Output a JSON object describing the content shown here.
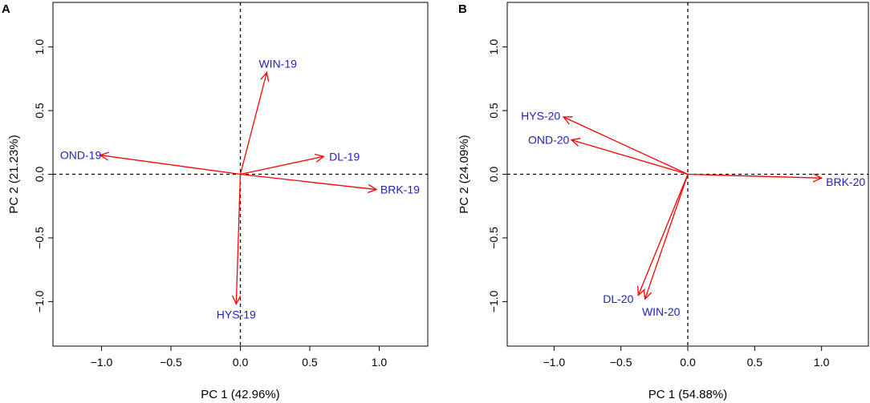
{
  "figure": {
    "arrow_color": "#ff0000",
    "label_color": "#2222bb"
  },
  "chart_data": [
    {
      "type": "scatter",
      "panel_label": "A",
      "title": "",
      "xlabel": "PC 1 (42.96%)",
      "ylabel": "PC 2 (21.23%)",
      "xlim": [
        -1.35,
        1.35
      ],
      "ylim": [
        -1.35,
        1.35
      ],
      "xticks": [
        -1.0,
        -0.5,
        0.0,
        0.5,
        1.0
      ],
      "xtick_labels": [
        "−1.0",
        "−0.5",
        "0.0",
        "0.5",
        "1.0"
      ],
      "yticks": [
        -1.0,
        -0.5,
        0.0,
        0.5,
        1.0
      ],
      "ytick_labels": [
        "−1.0",
        "−0.5",
        "0.0",
        "0.5",
        "1.0"
      ],
      "grid": false,
      "reference_lines": {
        "x": 0,
        "y": 0,
        "style": "dashed"
      },
      "vectors": [
        {
          "name": "WIN-19",
          "x": 0.19,
          "y": 0.8,
          "label_x": 0.27,
          "label_y": 0.87
        },
        {
          "name": "DL-19",
          "x": 0.6,
          "y": 0.14,
          "label_x": 0.75,
          "label_y": 0.14
        },
        {
          "name": "OND-19",
          "x": -1.01,
          "y": 0.15,
          "label_x": -1.15,
          "label_y": 0.15
        },
        {
          "name": "BRK-19",
          "x": 0.98,
          "y": -0.12,
          "label_x": 1.15,
          "label_y": -0.12
        },
        {
          "name": "HYS-19",
          "x": -0.03,
          "y": -1.02,
          "label_x": -0.03,
          "label_y": -1.1
        }
      ]
    },
    {
      "type": "scatter",
      "panel_label": "B",
      "title": "",
      "xlabel": "PC 1 (54.88%)",
      "ylabel": "PC 2 (24.09%)",
      "xlim": [
        -1.35,
        1.35
      ],
      "ylim": [
        -1.35,
        1.35
      ],
      "xticks": [
        -1.0,
        -0.5,
        0.0,
        0.5,
        1.0
      ],
      "xtick_labels": [
        "−1.0",
        "−0.5",
        "0.0",
        "0.5",
        "1.0"
      ],
      "yticks": [
        -1.0,
        -0.5,
        0.0,
        0.5,
        1.0
      ],
      "ytick_labels": [
        "−1.0",
        "−0.5",
        "0.0",
        "0.5",
        "1.0"
      ],
      "grid": false,
      "reference_lines": {
        "x": 0,
        "y": 0,
        "style": "dashed"
      },
      "vectors": [
        {
          "name": "HYS-20",
          "x": -0.93,
          "y": 0.45,
          "label_x": -1.1,
          "label_y": 0.46
        },
        {
          "name": "OND-20",
          "x": -0.87,
          "y": 0.27,
          "label_x": -1.04,
          "label_y": 0.27
        },
        {
          "name": "BRK-20",
          "x": 1.0,
          "y": -0.03,
          "label_x": 1.18,
          "label_y": -0.06
        },
        {
          "name": "DL-20",
          "x": -0.37,
          "y": -0.95,
          "label_x": -0.52,
          "label_y": -0.98
        },
        {
          "name": "WIN-20",
          "x": -0.32,
          "y": -0.98,
          "label_x": -0.2,
          "label_y": -1.08
        }
      ]
    }
  ]
}
